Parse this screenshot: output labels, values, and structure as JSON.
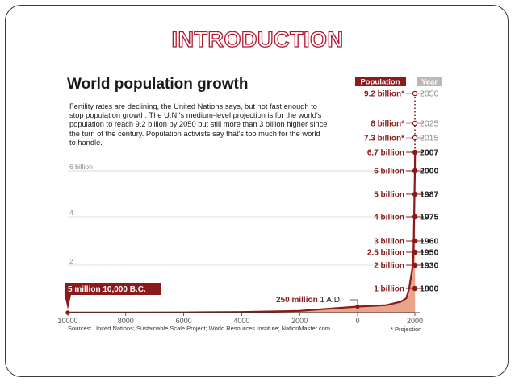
{
  "slide": {
    "title": "INTRODUCTION"
  },
  "chart_data": {
    "type": "area",
    "title": "World population growth",
    "intro": "Fertility rates are declining, the United Nations says, but not fast enough to stop population growth. The U.N.'s medium-level projection is for the world's population to reach 9.2 billion by 2050 but still more than 3 billion higher since the turn of the century. Population activists say that's too much for the world to handle.",
    "x_ticks": [
      "10000",
      "8000",
      "6000",
      "4000",
      "2000",
      "0",
      "2000"
    ],
    "y_ticks": [
      "6 billion",
      "4",
      "2"
    ],
    "xlim": [
      -10000,
      2050
    ],
    "ylim": [
      0,
      9.2
    ],
    "header_population": "Population",
    "header_year": "Year",
    "colors": {
      "accent": "#8b1a1a",
      "fill": "#e9a48c",
      "line": "#8b1a1a"
    },
    "series": [
      {
        "values": [
          {
            "x": -10000,
            "y": 0.005
          },
          {
            "x": -8000,
            "y": 0.006
          },
          {
            "x": -6000,
            "y": 0.011
          },
          {
            "x": -4000,
            "y": 0.028
          },
          {
            "x": -2000,
            "y": 0.072
          },
          {
            "x": 1,
            "y": 0.25
          },
          {
            "x": 1000,
            "y": 0.31
          },
          {
            "x": 1500,
            "y": 0.45
          },
          {
            "x": 1700,
            "y": 0.6
          },
          {
            "x": 1800,
            "y": 1
          },
          {
            "x": 1930,
            "y": 2
          },
          {
            "x": 1950,
            "y": 2.5
          },
          {
            "x": 1960,
            "y": 3
          },
          {
            "x": 1975,
            "y": 4
          },
          {
            "x": 1987,
            "y": 5
          },
          {
            "x": 2000,
            "y": 6
          },
          {
            "x": 2007,
            "y": 6.7
          }
        ]
      }
    ],
    "milestones": [
      {
        "population": "9.2 billion*",
        "year": "2050",
        "projection": true
      },
      {
        "population": "8 billion*",
        "year": "2025",
        "projection": true
      },
      {
        "population": "7.3 billion*",
        "year": "2015",
        "projection": true
      },
      {
        "population": "6.7 billion",
        "year": "2007",
        "projection": false
      },
      {
        "population": "6 billion",
        "year": "2000",
        "projection": false
      },
      {
        "population": "5 billion",
        "year": "1987",
        "projection": false
      },
      {
        "population": "4 billion",
        "year": "1975",
        "projection": false
      },
      {
        "population": "3 billion",
        "year": "1960",
        "projection": false
      },
      {
        "population": "2.5 billion",
        "year": "1950",
        "projection": false
      },
      {
        "population": "2 billion",
        "year": "1930",
        "projection": false
      },
      {
        "population": "1 billion",
        "year": "1800",
        "projection": false
      }
    ],
    "annotations": {
      "start": "5 million 10,000 B.C.",
      "ad_value": "250 million",
      "ad_label": "1 A.D."
    },
    "sources": "Sources: United Nations; Sustainable Scale Project; World Resources Institute; NationMaster.com",
    "projection_note": "* Projection"
  }
}
